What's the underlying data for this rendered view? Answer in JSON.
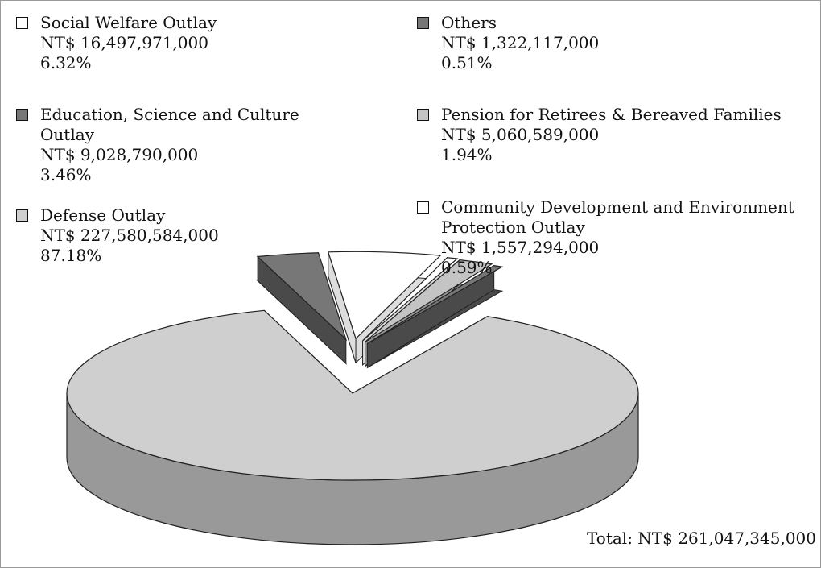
{
  "chart_data": {
    "type": "pie",
    "categories": [
      "Education, Science and Culture Outlay",
      "Social Welfare Outlay",
      "Community Development and Environment Protection Outlay",
      "Pension for Retirees & Bereaved Families",
      "Others",
      "Defense Outlay"
    ],
    "amounts": [
      "NT$ 9,028,790,000",
      "NT$ 16,497,971,000",
      "NT$ 1,557,294,000",
      "NT$ 5,060,589,000",
      "NT$ 1,322,117,000",
      "NT$ 227,580,584,000"
    ],
    "values": [
      3.46,
      6.32,
      0.59,
      1.94,
      0.51,
      87.18
    ],
    "value_labels": [
      "3.46%",
      "6.32%",
      "0.59%",
      "1.94%",
      "0.51%",
      "87.18%"
    ],
    "colors": [
      "#777777",
      "#ffffff",
      "#ffffff",
      "#c4c4c4",
      "#777777",
      "#cfcfcf"
    ],
    "annotation": "Total: NT$ 261,047,345,000"
  }
}
